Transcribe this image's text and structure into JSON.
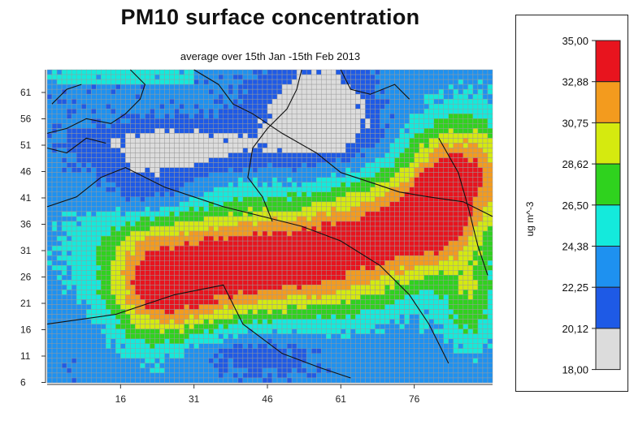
{
  "title": "PM10 surface concentration",
  "subtitle": "average over 15th Jan -15th Feb 2013",
  "map": {
    "x_ticks": [
      "16",
      "31",
      "46",
      "61",
      "76"
    ],
    "y_ticks": [
      "61",
      "56",
      "51",
      "46",
      "41",
      "36",
      "31",
      "26",
      "21",
      "16",
      "11",
      "6"
    ],
    "grid_line_color": "#9a9a9a",
    "border_color": "#111111"
  },
  "legend": {
    "unit": "ug m^-3",
    "bins": [
      {
        "label": "35,00",
        "color": "#e8141e"
      },
      {
        "label": "32,88",
        "color": "#f39b1e"
      },
      {
        "label": "30,75",
        "color": "#d5ea0f"
      },
      {
        "label": "28,62",
        "color": "#2fd21e"
      },
      {
        "label": "26,50",
        "color": "#14eadc"
      },
      {
        "label": "24,38",
        "color": "#1e91f0"
      },
      {
        "label": "22,25",
        "color": "#1e5ae6"
      },
      {
        "label": "20,12",
        "color": "#dcdcdc"
      },
      {
        "label": "18,00",
        "color": null
      }
    ]
  }
}
